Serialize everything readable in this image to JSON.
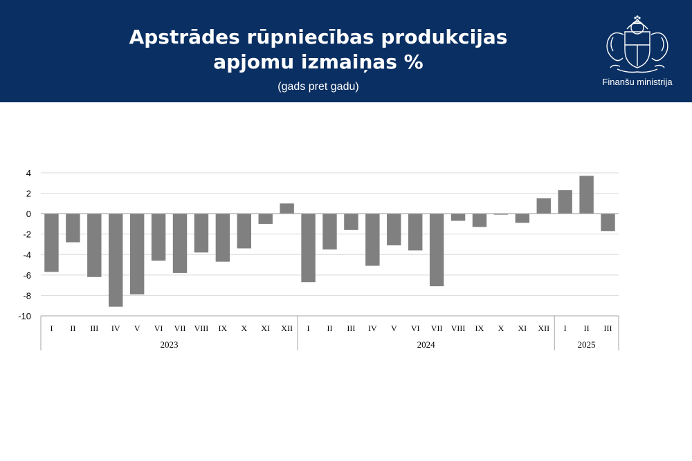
{
  "header": {
    "title_line1": "Apstrādes rūpniecības produkcijas",
    "title_line2": "apjomu izmaiņas %",
    "subtitle": "(gads pret gadu)",
    "logo_text": "Finanšu ministrija",
    "logo_icon": "latvia-coat-of-arms-icon"
  },
  "colors": {
    "header_bg": "#0a2f62",
    "bar": "#808080",
    "grid": "#d9d9d9",
    "axis": "#a6a6a6"
  },
  "chart_data": {
    "type": "bar",
    "title": "",
    "xlabel": "",
    "ylabel": "",
    "ylim": [
      -10,
      4
    ],
    "yticks": [
      4,
      2,
      0,
      -2,
      -4,
      -6,
      -8,
      -10
    ],
    "grid": true,
    "legend": "none",
    "groups": [
      {
        "label": "2023",
        "categories": [
          "I",
          "II",
          "III",
          "IV",
          "V",
          "VI",
          "VII",
          "VIII",
          "IX",
          "X",
          "XI",
          "XII"
        ]
      },
      {
        "label": "2024",
        "categories": [
          "I",
          "II",
          "III",
          "IV",
          "V",
          "VI",
          "VII",
          "VIII",
          "IX",
          "X",
          "XI",
          "XII"
        ]
      },
      {
        "label": "2025",
        "categories": [
          "I",
          "II",
          "III"
        ]
      }
    ],
    "values": [
      -5.7,
      -2.8,
      -6.2,
      -9.1,
      -7.9,
      -4.6,
      -5.8,
      -3.8,
      -4.7,
      -3.4,
      -1.0,
      1.0,
      -6.7,
      -3.5,
      -1.6,
      -5.1,
      -3.1,
      -3.6,
      -7.1,
      -0.7,
      -1.3,
      -0.1,
      -0.9,
      1.5,
      2.3,
      3.7,
      -1.7
    ]
  }
}
